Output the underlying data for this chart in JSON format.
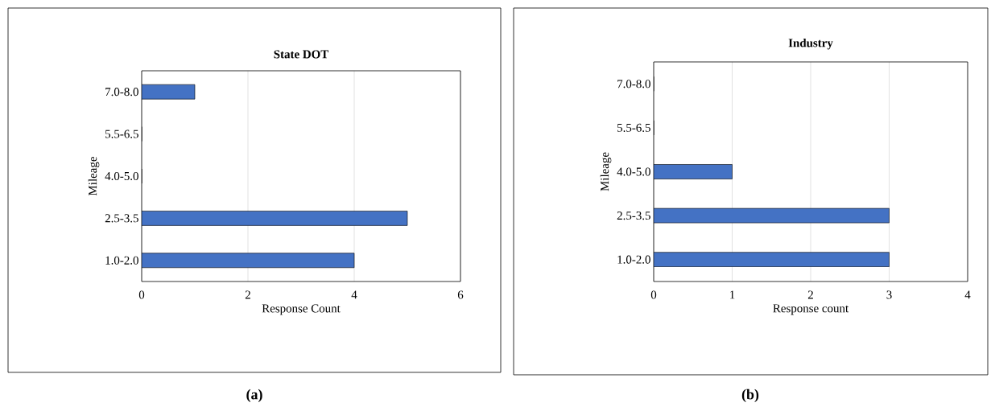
{
  "chart_data": [
    {
      "type": "bar",
      "orientation": "horizontal",
      "title": "State DOT",
      "xlabel": "Response Count",
      "ylabel": "Mileage",
      "categories": [
        "7.0-8.0",
        "5.5-6.5",
        "4.0-5.0",
        "2.5-3.5",
        "1.0-2.0"
      ],
      "values": [
        1,
        0,
        0,
        5,
        4
      ],
      "color": "#4472c4",
      "xlim": [
        0,
        6
      ],
      "xticks": [
        0,
        2,
        4,
        6
      ],
      "grid": "x",
      "annotations": [
        "(a)"
      ]
    },
    {
      "type": "bar",
      "orientation": "horizontal",
      "title": "Industry",
      "xlabel": "Response count",
      "ylabel": "Mileage",
      "categories": [
        "7.0-8.0",
        "5.5-6.5",
        "4.0-5.0",
        "2.5-3.5",
        "1.0-2.0"
      ],
      "values": [
        0,
        0,
        1,
        3,
        3
      ],
      "color": "#4472c4",
      "xlim": [
        0,
        4
      ],
      "xticks": [
        0,
        1,
        2,
        3,
        4
      ],
      "grid": "x",
      "annotations": [
        "(b)"
      ]
    }
  ]
}
